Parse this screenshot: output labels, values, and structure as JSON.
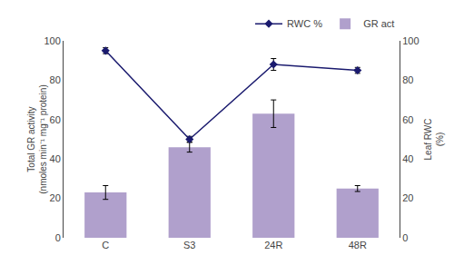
{
  "chart_data": {
    "type": "bar",
    "categories": [
      "C",
      "S3",
      "24R",
      "48R"
    ],
    "series": [
      {
        "name": "RWC %",
        "type": "line",
        "axis": "y2",
        "color": "#1a1a6e",
        "marker": "diamond",
        "values": [
          95,
          50,
          88,
          85
        ],
        "errors": [
          1.5,
          1.5,
          3,
          1.5
        ]
      },
      {
        "name": "GR act",
        "type": "bar",
        "color": "#b0a0cc",
        "values": [
          23,
          46,
          63,
          25
        ],
        "errors": [
          3.5,
          2.5,
          7,
          1.5
        ]
      }
    ],
    "ylabel": "Total GR activity\n(nmoles min⁻¹ mg⁻¹ protein)",
    "y2label": "Leaf RWC\n(%)",
    "ylim": [
      0,
      100
    ],
    "yticks": [
      0,
      20,
      40,
      60,
      80,
      100
    ],
    "y2lim": [
      0,
      100
    ],
    "y2ticks": [
      0,
      20,
      40,
      60,
      80,
      100
    ],
    "grid": false,
    "legend": "upper right"
  }
}
